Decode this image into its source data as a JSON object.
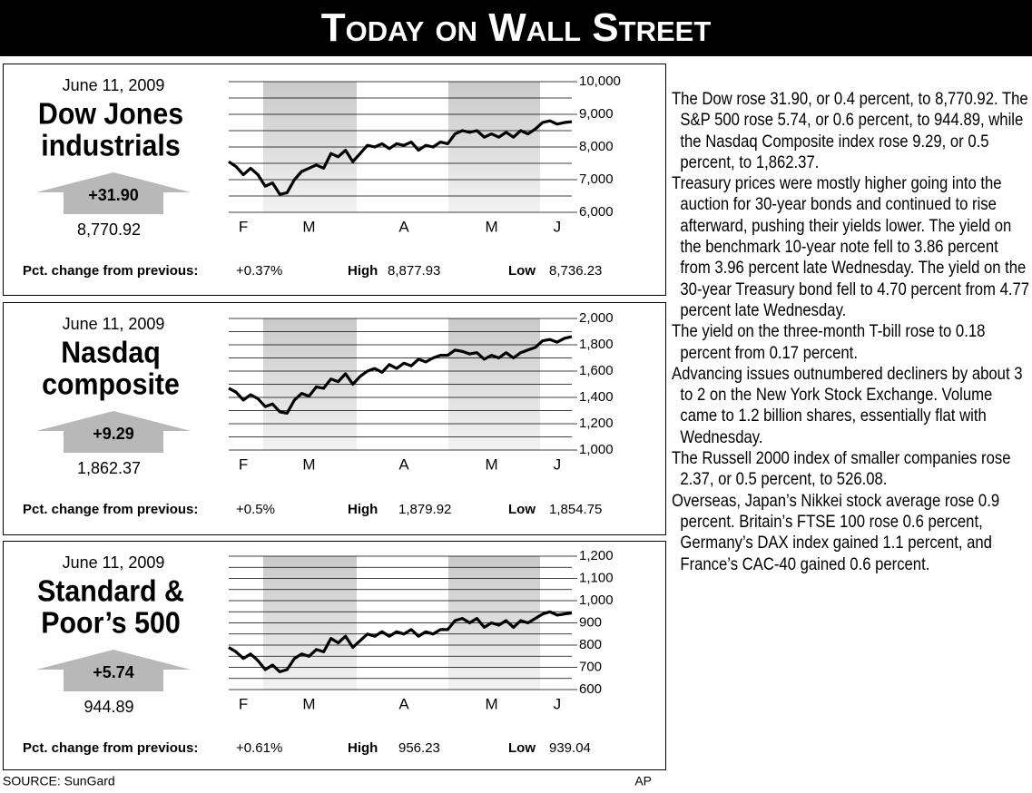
{
  "header": {
    "title": "Today on Wall Street"
  },
  "chart_data": [
    {
      "type": "line",
      "date": "June 11, 2009",
      "title_lines": [
        "Dow Jones",
        "industrials"
      ],
      "change": "+31.90",
      "close": "8,770.92",
      "stats": {
        "pct_change_label": "Pct. change from previous:",
        "pct_change": "+0.37%",
        "high_label": "High",
        "high": "8,877.93",
        "low_label": "Low",
        "low": "8,736.23"
      },
      "categories": [
        null,
        null,
        "F",
        null,
        null,
        null,
        null,
        null,
        null,
        null,
        null,
        "M",
        null,
        null,
        null,
        null,
        null,
        null,
        null,
        null,
        null,
        null,
        null,
        null,
        "A",
        null,
        null,
        null,
        null,
        null,
        null,
        null,
        null,
        null,
        null,
        null,
        "M",
        null,
        null,
        null,
        null,
        null,
        null,
        null,
        null,
        "J",
        null,
        null
      ],
      "series": [
        {
          "color": "#000000",
          "values": [
            7550,
            7400,
            7150,
            7350,
            7150,
            6800,
            6900,
            6550,
            6600,
            7000,
            7250,
            7350,
            7450,
            7350,
            7800,
            7700,
            7900,
            7550,
            7800,
            8050,
            8000,
            8100,
            7950,
            8100,
            8050,
            8150,
            7900,
            8050,
            8000,
            8150,
            8100,
            8400,
            8500,
            8450,
            8500,
            8300,
            8400,
            8300,
            8450,
            8300,
            8500,
            8400,
            8550,
            8750,
            8800,
            8700,
            8750,
            8770.92
          ]
        }
      ],
      "ylim": [
        6000,
        10000
      ],
      "yticks": [
        {
          "value": 6000,
          "label": "6,000"
        },
        {
          "value": 7000,
          "label": "7,000"
        },
        {
          "value": 8000,
          "label": "8,000"
        },
        {
          "value": 9000,
          "label": "9,000"
        },
        {
          "value": 10000,
          "label": "10,000"
        }
      ],
      "minor_yticks": [
        6500,
        7500,
        8500,
        9500
      ],
      "grid": true
    },
    {
      "type": "line",
      "date": "June 11, 2009",
      "title_lines": [
        "Nasdaq",
        "composite"
      ],
      "change": "+9.29",
      "close": "1,862.37",
      "stats": {
        "pct_change_label": "Pct. change from previous:",
        "pct_change": "+0.5%",
        "high_label": "High",
        "high": "1,879.92",
        "low_label": "Low",
        "low": "1,854.75"
      },
      "categories": [
        null,
        null,
        "F",
        null,
        null,
        null,
        null,
        null,
        null,
        null,
        null,
        "M",
        null,
        null,
        null,
        null,
        null,
        null,
        null,
        null,
        null,
        null,
        null,
        null,
        "A",
        null,
        null,
        null,
        null,
        null,
        null,
        null,
        null,
        null,
        null,
        null,
        "M",
        null,
        null,
        null,
        null,
        null,
        null,
        null,
        null,
        "J",
        null,
        null
      ],
      "series": [
        {
          "color": "#000000",
          "values": [
            1470,
            1440,
            1380,
            1420,
            1390,
            1330,
            1350,
            1290,
            1280,
            1380,
            1430,
            1410,
            1480,
            1470,
            1540,
            1520,
            1580,
            1500,
            1560,
            1600,
            1620,
            1590,
            1650,
            1620,
            1660,
            1640,
            1690,
            1670,
            1700,
            1720,
            1720,
            1760,
            1750,
            1730,
            1740,
            1690,
            1720,
            1700,
            1740,
            1700,
            1740,
            1760,
            1780,
            1830,
            1840,
            1820,
            1850,
            1862.37
          ]
        }
      ],
      "ylim": [
        1000,
        2000
      ],
      "yticks": [
        {
          "value": 1000,
          "label": "1,000"
        },
        {
          "value": 1200,
          "label": "1,200"
        },
        {
          "value": 1400,
          "label": "1,400"
        },
        {
          "value": 1600,
          "label": "1,600"
        },
        {
          "value": 1800,
          "label": "1,800"
        },
        {
          "value": 2000,
          "label": "2,000"
        }
      ],
      "minor_yticks": [
        1100,
        1300,
        1500,
        1700,
        1900
      ],
      "grid": true
    },
    {
      "type": "line",
      "date": "June 11, 2009",
      "title_lines": [
        "Standard &",
        "Poor’s 500"
      ],
      "change": "+5.74",
      "close": "944.89",
      "stats": {
        "pct_change_label": "Pct. change from previous:",
        "pct_change": "+0.61%",
        "high_label": "High",
        "high": "956.23",
        "low_label": "Low",
        "low": "939.04"
      },
      "categories": [
        null,
        null,
        "F",
        null,
        null,
        null,
        null,
        null,
        null,
        null,
        null,
        "M",
        null,
        null,
        null,
        null,
        null,
        null,
        null,
        null,
        null,
        null,
        null,
        null,
        "A",
        null,
        null,
        null,
        null,
        null,
        null,
        null,
        null,
        null,
        null,
        null,
        "M",
        null,
        null,
        null,
        null,
        null,
        null,
        null,
        null,
        "J",
        null,
        null
      ],
      "series": [
        {
          "color": "#000000",
          "values": [
            790,
            770,
            740,
            760,
            730,
            690,
            710,
            680,
            690,
            740,
            760,
            750,
            780,
            770,
            830,
            810,
            840,
            790,
            820,
            850,
            840,
            860,
            840,
            860,
            850,
            870,
            840,
            860,
            850,
            870,
            870,
            910,
            920,
            900,
            920,
            880,
            900,
            890,
            910,
            880,
            910,
            900,
            920,
            940,
            950,
            935,
            940,
            944.89
          ]
        }
      ],
      "ylim": [
        600,
        1200
      ],
      "yticks": [
        600,
        700,
        800,
        900,
        {
          "value": 1000,
          "label": "1,000"
        },
        {
          "value": 1100,
          "label": "1,100"
        },
        {
          "value": 1200,
          "label": "1,200"
        }
      ],
      "minor_yticks": [
        650,
        750,
        850,
        950,
        1050,
        1150
      ],
      "grid": true
    }
  ],
  "paragraphs": [
    "The Dow rose 31.90, or 0.4 percent, to 8,770.92. The S&P 500 rose 5.74, or 0.6 percent, to 944.89, while the Nasdaq Composite index rose 9.29, or 0.5 percent, to 1,862.37.",
    "Treasury prices were mostly higher going into the auction for 30-year bonds and continued to rise afterward, pushing their yields lower. The yield on the benchmark 10-year note fell to 3.86 percent from 3.96 percent late Wednesday. The yield on the 30-year Treasury bond fell to 4.70 percent from 4.77 percent late Wednesday.",
    "The yield on the three-month T-bill rose to 0.18 percent from 0.17 percent.",
    "Advancing issues outnumbered decliners by about 3 to 2 on the New York Stock Exchange. Volume came to 1.2 billion shares, essentially flat with Wednesday.",
    "The Russell 2000 index of smaller companies rose 2.37, or 0.5 percent, to 526.08.",
    "Overseas, Japan’s Nikkei stock average rose 0.9 percent. Britain’s FTSE 100 rose 0.6 percent, Germany’s DAX index gained 1.1 percent, and France’s CAC-40 gained 0.6 percent."
  ],
  "footer": {
    "source": "SOURCE: SunGard",
    "credit": "AP"
  }
}
